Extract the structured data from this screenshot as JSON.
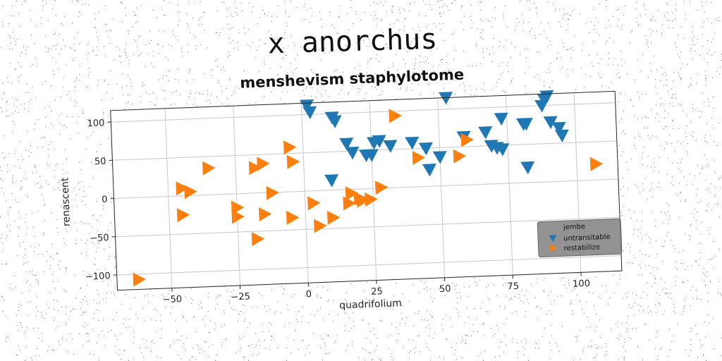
{
  "suptitle": "x anorchus",
  "chart_data": {
    "type": "scatter",
    "title": "menshevism staphylotome",
    "xlabel": "quadrifolium",
    "ylabel": "renascent",
    "xlim": [
      -70,
      115
    ],
    "ylim": [
      -120,
      115
    ],
    "xticks": [
      -50,
      -25,
      0,
      25,
      50,
      75,
      100
    ],
    "yticks": [
      -100,
      -50,
      0,
      50,
      100
    ],
    "grid": true,
    "legend": {
      "title": "jembe",
      "placement": "lower-right",
      "background": "#808080"
    },
    "series": [
      {
        "name": "untransitable",
        "marker": "triangle-down",
        "color": "#1f77b4",
        "points": [
          [
            2,
            112
          ],
          [
            3,
            103
          ],
          [
            11,
            95
          ],
          [
            12,
            90
          ],
          [
            16,
            60
          ],
          [
            18,
            48
          ],
          [
            23,
            44
          ],
          [
            25,
            44
          ],
          [
            26,
            60
          ],
          [
            28,
            62
          ],
          [
            32,
            55
          ],
          [
            40,
            58
          ],
          [
            45,
            50
          ],
          [
            46,
            22
          ],
          [
            50,
            38
          ],
          [
            53,
            115
          ],
          [
            59,
            63
          ],
          [
            67,
            68
          ],
          [
            69,
            50
          ],
          [
            71,
            47
          ],
          [
            73,
            45
          ],
          [
            73,
            85
          ],
          [
            81,
            77
          ],
          [
            82,
            77
          ],
          [
            82,
            20
          ],
          [
            88,
            100
          ],
          [
            89,
            108
          ],
          [
            90,
            112
          ],
          [
            91,
            78
          ],
          [
            94,
            70
          ],
          [
            95,
            60
          ],
          [
            10,
            13
          ]
        ]
      },
      {
        "name": "restabilize",
        "marker": "triangle-right",
        "color": "#ff7f0e",
        "points": [
          [
            -62,
            -107
          ],
          [
            -45,
            10
          ],
          [
            -45,
            -25
          ],
          [
            -42,
            5
          ],
          [
            -35,
            35
          ],
          [
            -25,
            -18
          ],
          [
            -25,
            -30
          ],
          [
            -18,
            33
          ],
          [
            -18,
            -60
          ],
          [
            -15,
            38
          ],
          [
            -15,
            -28
          ],
          [
            -12,
            -0.5
          ],
          [
            -5,
            58
          ],
          [
            -5,
            -34
          ],
          [
            -4,
            39
          ],
          [
            3,
            -16
          ],
          [
            5,
            -46
          ],
          [
            10,
            -36
          ],
          [
            16,
            -18
          ],
          [
            17,
            -5
          ],
          [
            20,
            -12
          ],
          [
            21,
            -15
          ],
          [
            24,
            -14
          ],
          [
            28,
            1
          ],
          [
            34,
            94
          ],
          [
            42,
            38
          ],
          [
            57,
            38
          ],
          [
            60,
            59
          ],
          [
            107,
            21
          ]
        ]
      }
    ]
  }
}
